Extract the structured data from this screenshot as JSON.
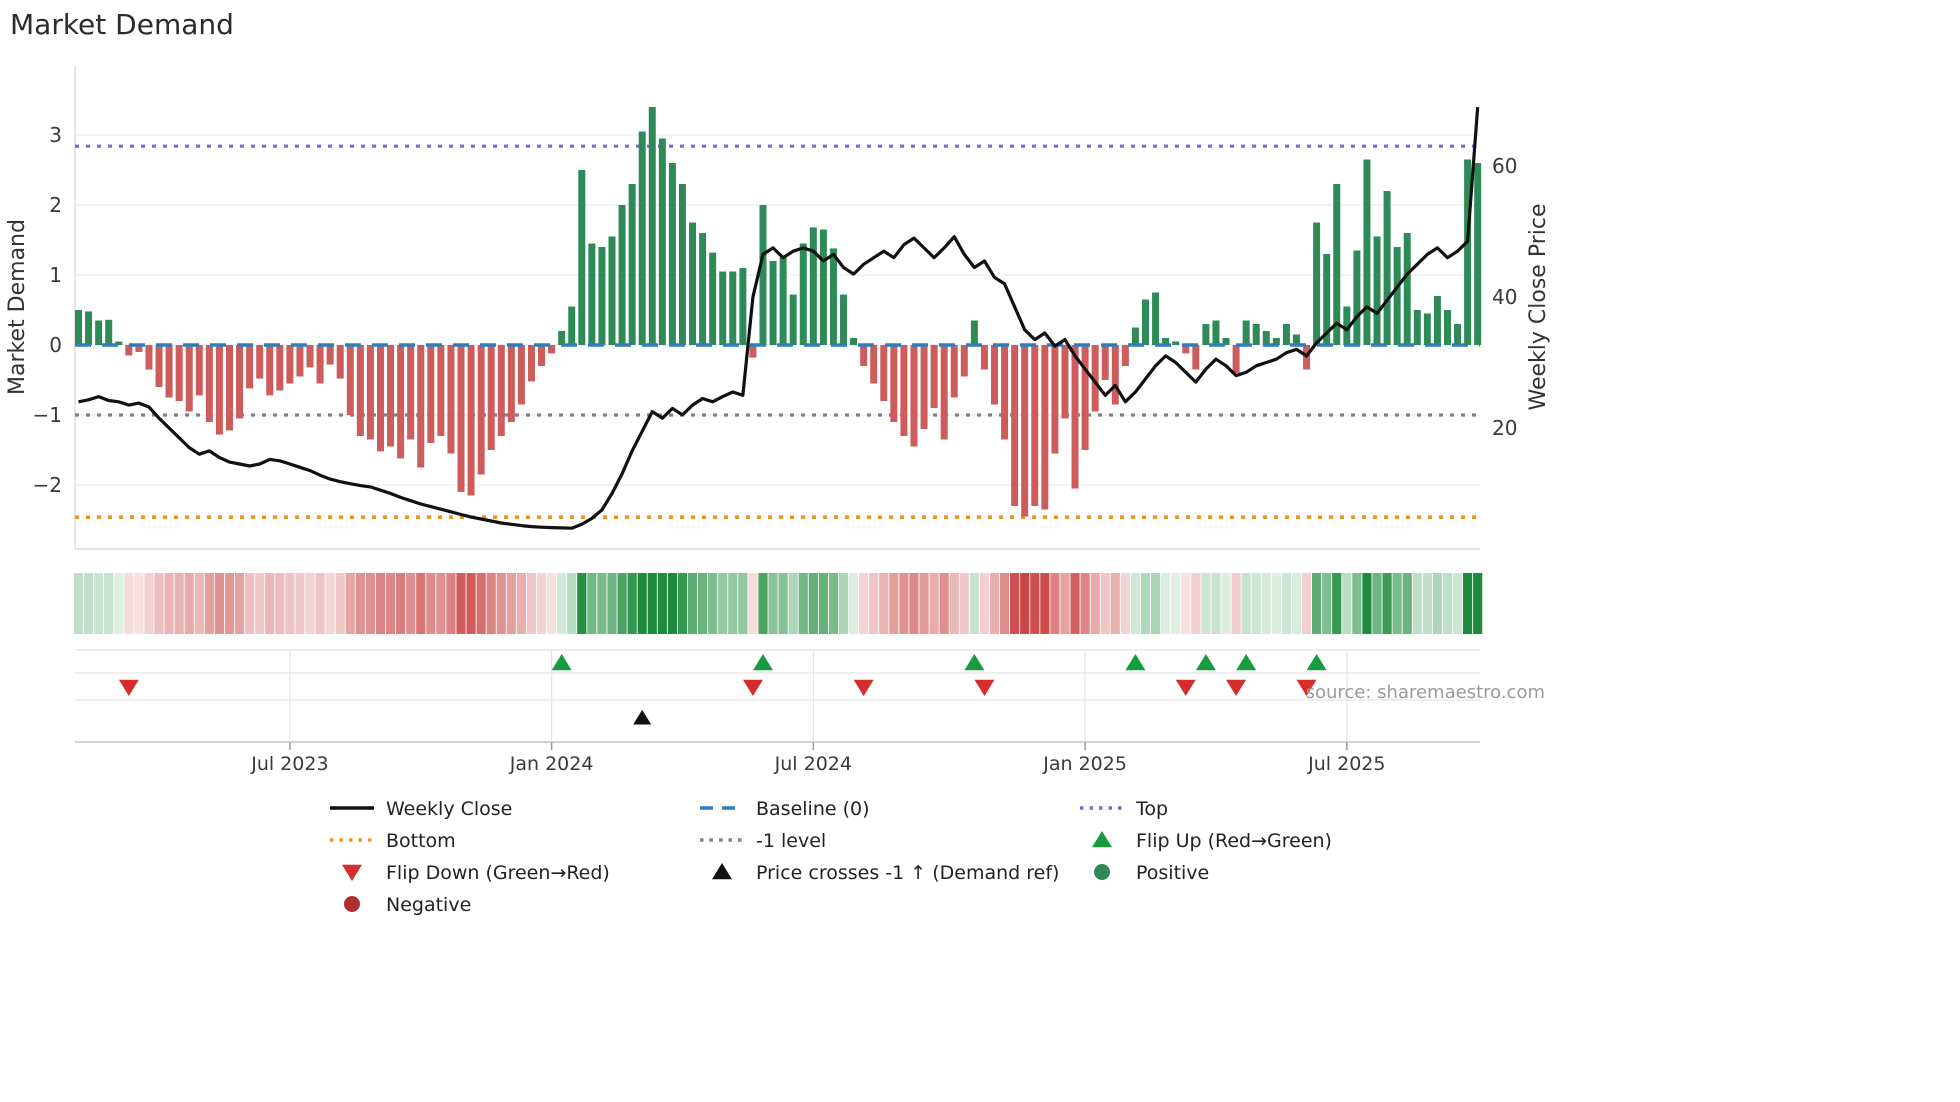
{
  "title": "Market Demand",
  "source_text": "source: sharemaestro.com",
  "left_axis": {
    "label": "Market Demand",
    "tick_labels": [
      "3",
      "2",
      "1",
      "0",
      "−1",
      "−2"
    ],
    "tick_values": [
      3,
      2,
      1,
      0,
      -1,
      -2
    ]
  },
  "right_axis": {
    "label": "Weekly Close Price",
    "tick_labels": [
      "60",
      "40",
      "20"
    ],
    "tick_values": [
      60,
      40,
      20
    ]
  },
  "x_axis": {
    "tick_labels": [
      "Jul 2023",
      "Jan 2024",
      "Jul 2024",
      "Jan 2025",
      "Jul 2025"
    ],
    "tick_weeks": [
      21,
      47,
      73,
      100,
      126
    ]
  },
  "colors": {
    "bar_positive": "#2e8b57",
    "bar_negative": "#cd5c5c",
    "price_line": "#111111",
    "baseline": "#2e7ebb",
    "top_line": "#7668d8",
    "bottom_line": "#f1941d",
    "minus1_line": "#828282",
    "flip_up": "#169c3e",
    "flip_down": "#d62c2c",
    "price_cross": "#111111",
    "positive_dot": "#2e8b57",
    "negative_dot": "#b03030",
    "grid": "#ebedf2",
    "spine": "#d9dce3",
    "heat_green": [
      30,
      140,
      60
    ],
    "heat_red": [
      200,
      60,
      60
    ]
  },
  "chart_data": {
    "type": "bar+line",
    "n_weeks": 140,
    "x_range_note": "weekly data, ~Feb 2023 to ~Oct 2025",
    "left_ylim": [
      -2.91,
      4.0
    ],
    "right_ylim": [
      1.5,
      75.4
    ],
    "grid": "horizontal only",
    "series": [
      {
        "name": "Market Demand",
        "type": "bar",
        "axis": "left",
        "values": [
          0.5,
          0.48,
          0.35,
          0.36,
          0.05,
          -0.15,
          -0.1,
          -0.35,
          -0.6,
          -0.75,
          -0.8,
          -0.95,
          -0.72,
          -1.1,
          -1.28,
          -1.22,
          -1.05,
          -0.62,
          -0.48,
          -0.72,
          -0.65,
          -0.55,
          -0.45,
          -0.32,
          -0.55,
          -0.28,
          -0.48,
          -1.0,
          -1.3,
          -1.35,
          -1.52,
          -1.45,
          -1.62,
          -1.35,
          -1.75,
          -1.4,
          -1.3,
          -1.55,
          -2.1,
          -2.15,
          -1.85,
          -1.5,
          -1.3,
          -1.1,
          -0.85,
          -0.52,
          -0.3,
          -0.12,
          0.2,
          0.55,
          2.5,
          1.45,
          1.4,
          1.55,
          2.0,
          2.3,
          3.05,
          3.4,
          2.95,
          2.6,
          2.3,
          1.75,
          1.6,
          1.32,
          1.05,
          1.05,
          1.1,
          -0.18,
          2.0,
          1.2,
          1.25,
          0.72,
          1.45,
          1.68,
          1.65,
          1.38,
          0.72,
          0.1,
          -0.3,
          -0.55,
          -0.8,
          -1.1,
          -1.3,
          -1.45,
          -1.2,
          -0.9,
          -1.35,
          -0.75,
          -0.45,
          0.35,
          -0.35,
          -0.85,
          -1.35,
          -2.3,
          -2.45,
          -2.3,
          -2.35,
          -1.55,
          -1.05,
          -2.05,
          -1.5,
          -0.95,
          -0.5,
          -0.85,
          -0.3,
          0.25,
          0.65,
          0.75,
          0.1,
          0.05,
          -0.12,
          -0.35,
          0.3,
          0.35,
          0.1,
          -0.4,
          0.35,
          0.3,
          0.2,
          0.1,
          0.3,
          0.15,
          -0.35,
          1.75,
          1.3,
          2.3,
          0.55,
          1.35,
          2.65,
          1.55,
          2.2,
          1.4,
          1.6,
          0.5,
          0.45,
          0.7,
          0.5,
          0.3,
          2.65,
          2.6
        ]
      },
      {
        "name": "Weekly Close",
        "type": "line",
        "axis": "right",
        "values": [
          24.0,
          24.3,
          24.8,
          24.2,
          24.0,
          23.5,
          23.8,
          23.2,
          21.5,
          20.0,
          18.5,
          17.0,
          16.0,
          16.5,
          15.5,
          14.8,
          14.5,
          14.2,
          14.5,
          15.2,
          15.0,
          14.5,
          14.0,
          13.5,
          12.8,
          12.2,
          11.8,
          11.5,
          11.2,
          11.0,
          10.5,
          10.0,
          9.4,
          8.9,
          8.4,
          8.0,
          7.6,
          7.2,
          6.8,
          6.4,
          6.1,
          5.8,
          5.5,
          5.3,
          5.1,
          4.95,
          4.85,
          4.8,
          4.75,
          4.7,
          5.3,
          6.2,
          7.5,
          10.0,
          13.0,
          16.5,
          19.5,
          22.5,
          21.5,
          23.0,
          22.0,
          23.5,
          24.5,
          24.0,
          24.8,
          25.5,
          25.0,
          40.0,
          46.5,
          47.5,
          46.0,
          47.0,
          47.5,
          47.0,
          45.5,
          46.5,
          44.5,
          43.5,
          45.0,
          46.0,
          47.0,
          46.0,
          48.0,
          49.0,
          47.5,
          46.0,
          47.5,
          49.2,
          46.5,
          44.5,
          45.5,
          43.0,
          42.0,
          38.5,
          35.0,
          33.5,
          34.5,
          32.5,
          33.5,
          31.0,
          29.0,
          27.0,
          25.0,
          26.5,
          24.0,
          25.5,
          27.5,
          29.5,
          31.0,
          30.0,
          28.5,
          27.0,
          29.0,
          30.5,
          29.5,
          28.0,
          28.5,
          29.5,
          30.0,
          30.5,
          31.5,
          32.0,
          31.0,
          33.0,
          34.5,
          36.0,
          35.0,
          37.0,
          38.5,
          37.5,
          39.5,
          41.5,
          43.5,
          45.0,
          46.5,
          47.5,
          46.0,
          47.0,
          48.5,
          69.0
        ]
      }
    ],
    "reference_lines": [
      {
        "name": "Top",
        "axis": "left",
        "value": 2.84,
        "style": "dotted"
      },
      {
        "name": "Baseline (0)",
        "axis": "left",
        "value": 0,
        "style": "dashed"
      },
      {
        "name": "-1 level",
        "axis": "left",
        "value": -1,
        "style": "dotted"
      },
      {
        "name": "Bottom",
        "axis": "left",
        "value": -2.46,
        "style": "dotted"
      }
    ],
    "heatmap": {
      "source": "Market Demand bar values",
      "note": "one cell per week; green when positive, red when negative, opacity scales with |value|"
    },
    "markers": {
      "flip_up_weeks": [
        48,
        68,
        89,
        105,
        112,
        116,
        123
      ],
      "flip_down_weeks": [
        5,
        67,
        78,
        90,
        110,
        115,
        122
      ],
      "price_cross_weeks": [
        56
      ]
    }
  },
  "legend": {
    "items": [
      {
        "label": "Weekly Close",
        "swatch": "line-black",
        "row": 0,
        "col": 0
      },
      {
        "label": "Baseline (0)",
        "swatch": "dash-blue",
        "row": 0,
        "col": 1
      },
      {
        "label": "Top",
        "swatch": "dot-purple",
        "row": 0,
        "col": 2
      },
      {
        "label": "Bottom",
        "swatch": "dot-orange",
        "row": 1,
        "col": 0
      },
      {
        "label": "-1 level",
        "swatch": "dot-gray",
        "row": 1,
        "col": 1
      },
      {
        "label": "Flip Up (Red→Green)",
        "swatch": "tri-up-green",
        "row": 1,
        "col": 2
      },
      {
        "label": "Flip Down (Green→Red)",
        "swatch": "tri-down-red",
        "row": 2,
        "col": 0
      },
      {
        "label": "Price crosses -1 ↑ (Demand ref)",
        "swatch": "tri-up-black",
        "row": 2,
        "col": 1
      },
      {
        "label": "Positive",
        "swatch": "circle-green",
        "row": 2,
        "col": 2
      },
      {
        "label": "Negative",
        "swatch": "circle-red",
        "row": 3,
        "col": 0
      }
    ]
  }
}
